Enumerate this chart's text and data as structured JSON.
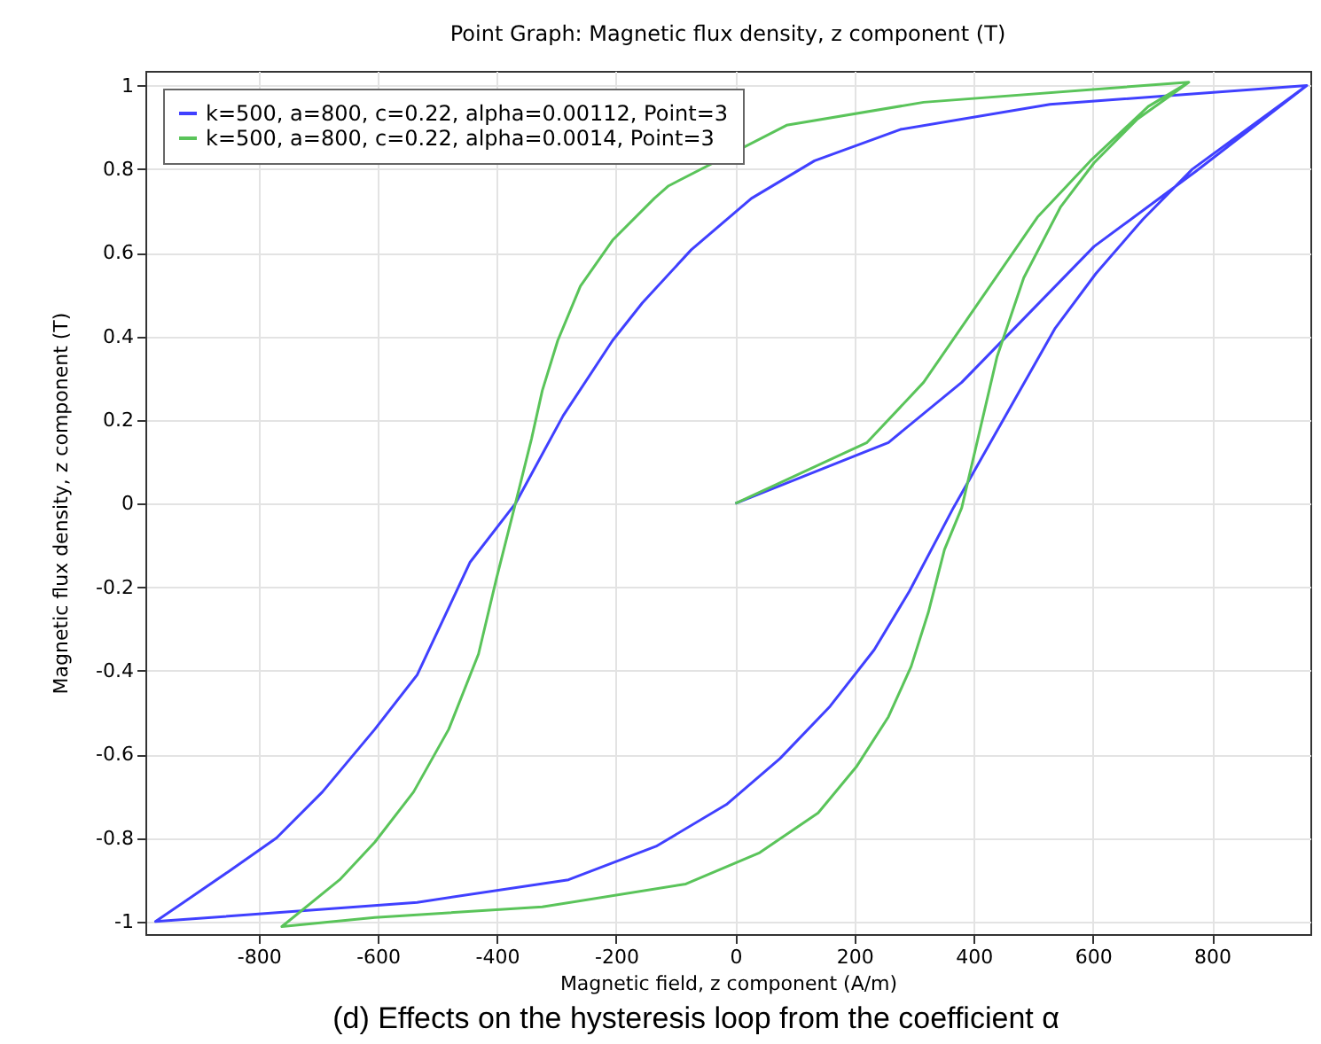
{
  "chart_data": {
    "type": "line",
    "title": "Point Graph: Magnetic flux density, z component (T)",
    "xlabel": "Magnetic field, z component (A/m)",
    "ylabel": "Magnetic flux density, z component (T)",
    "annotations": [
      "(d) Effects on the hysteresis loop from the coefficient α"
    ],
    "xlim": [
      -990,
      965
    ],
    "ylim": [
      -1.03,
      1.035
    ],
    "xticks": [
      -800,
      -600,
      -400,
      -200,
      0,
      200,
      400,
      600,
      800
    ],
    "yticks": [
      -1,
      -0.8,
      -0.6,
      -0.4,
      -0.2,
      0,
      0.2,
      0.4,
      0.6,
      0.8,
      1
    ],
    "grid": true,
    "legend": "top left",
    "line_style": "solid",
    "marker": "none",
    "series": [
      {
        "name": "k=500, a=800, c=0.22, alpha=0.00112, Point=3",
        "color": "#4040ff",
        "x": [
          0,
          257,
          380,
          602,
          773,
          959,
          528,
          277,
          133,
          27,
          -74,
          -156,
          -206,
          -289,
          -369,
          -445,
          -534,
          -605,
          -693,
          -770,
          -850,
          -973,
          -534,
          -280,
          -133,
          -15,
          75,
          159,
          233,
          292,
          366,
          537,
          605,
          684,
          767,
          959
        ],
        "values": [
          0,
          0.146,
          0.29,
          0.615,
          0.795,
          1.0,
          0.955,
          0.895,
          0.82,
          0.73,
          0.607,
          0.48,
          0.39,
          0.21,
          0,
          -0.14,
          -0.41,
          -0.54,
          -0.69,
          -0.8,
          -0.88,
          -1.0,
          -0.954,
          -0.9,
          -0.82,
          -0.72,
          -0.61,
          -0.485,
          -0.35,
          -0.21,
          -0.01,
          0.42,
          0.55,
          0.68,
          0.8,
          1.0
        ]
      },
      {
        "name": "k=500, a=800, c=0.22, alpha=0.0014, Point=3",
        "color": "#5ac45a",
        "x": [
          0,
          221,
          316,
          507,
          596,
          693,
          761,
          316,
          86,
          -112,
          -136,
          -206,
          -260,
          -298,
          -324,
          -342,
          -369,
          -401,
          -431,
          -481,
          -540,
          -605,
          -664,
          -761,
          -605,
          -324,
          -83,
          41,
          139,
          203,
          257,
          295,
          324,
          351,
          380,
          439,
          484,
          546,
          602,
          675,
          734,
          761
        ],
        "values": [
          0,
          0.146,
          0.29,
          0.685,
          0.82,
          0.95,
          1.008,
          0.96,
          0.905,
          0.76,
          0.73,
          0.63,
          0.52,
          0.39,
          0.27,
          0.155,
          0,
          -0.18,
          -0.36,
          -0.54,
          -0.69,
          -0.81,
          -0.9,
          -1.012,
          -0.99,
          -0.965,
          -0.91,
          -0.835,
          -0.74,
          -0.63,
          -0.51,
          -0.39,
          -0.26,
          -0.11,
          -0.01,
          0.35,
          0.54,
          0.71,
          0.815,
          0.92,
          0.98,
          1.008
        ]
      }
    ]
  }
}
